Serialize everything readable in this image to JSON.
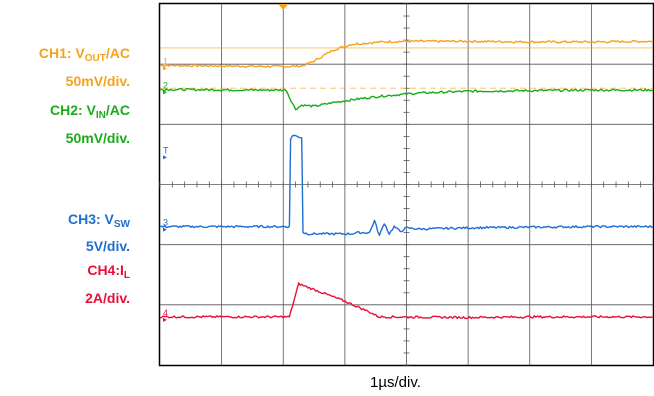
{
  "labels": {
    "ch1": {
      "prefix": "CH1: V",
      "sub": "OUT",
      "suffix": "/AC",
      "scale": "50mV/div.",
      "color": "#f7a21b"
    },
    "ch2": {
      "prefix": "CH2: V",
      "sub": "IN",
      "suffix": "/AC",
      "scale": "50mV/div.",
      "color": "#1aab1a"
    },
    "ch3": {
      "prefix": "CH3: V",
      "sub": "SW",
      "suffix": "",
      "scale": "5V/div.",
      "color": "#1f6fd1"
    },
    "ch4": {
      "prefix": "CH4:I",
      "sub": "L",
      "suffix": "",
      "scale": "2A/div.",
      "color": "#e8103a"
    }
  },
  "chart_data": {
    "type": "line",
    "xlabel": "1µs/div.",
    "divisions": {
      "x": 8,
      "y": 6
    },
    "xlim": [
      0,
      8
    ],
    "ylim": [
      0,
      6
    ],
    "channel_markers": [
      "1",
      "2",
      "T",
      "3",
      "4"
    ],
    "series": [
      {
        "name": "CH1: VOUT/AC",
        "color": "#f7a21b",
        "points": [
          [
            0,
            4.98
          ],
          [
            2,
            4.96
          ],
          [
            2.3,
            4.97
          ],
          [
            2.5,
            5.05
          ],
          [
            2.8,
            5.23
          ],
          [
            3.1,
            5.33
          ],
          [
            3.6,
            5.37
          ],
          [
            4,
            5.38
          ],
          [
            5,
            5.38
          ],
          [
            6,
            5.37
          ],
          [
            7,
            5.37
          ],
          [
            8,
            5.38
          ]
        ]
      },
      {
        "name": "CH2: VIN/AC",
        "color": "#1aab1a",
        "points": [
          [
            0,
            4.58
          ],
          [
            1.5,
            4.57
          ],
          [
            2.05,
            4.57
          ],
          [
            2.1,
            4.45
          ],
          [
            2.2,
            4.25
          ],
          [
            2.3,
            4.32
          ],
          [
            2.5,
            4.3
          ],
          [
            2.8,
            4.36
          ],
          [
            3.2,
            4.42
          ],
          [
            3.6,
            4.47
          ],
          [
            4.2,
            4.52
          ],
          [
            5,
            4.55
          ],
          [
            6,
            4.56
          ],
          [
            7,
            4.57
          ],
          [
            8,
            4.57
          ]
        ]
      },
      {
        "name": "CH3: VSW",
        "color": "#1f6fd1",
        "points": [
          [
            0,
            2.3
          ],
          [
            2.1,
            2.3
          ],
          [
            2.12,
            3.75
          ],
          [
            2.15,
            3.82
          ],
          [
            2.3,
            3.78
          ],
          [
            2.32,
            2.2
          ],
          [
            2.4,
            2.18
          ],
          [
            3.1,
            2.18
          ],
          [
            3.2,
            2.2
          ],
          [
            3.4,
            2.2
          ],
          [
            3.48,
            2.4
          ],
          [
            3.56,
            2.15
          ],
          [
            3.64,
            2.36
          ],
          [
            3.72,
            2.18
          ],
          [
            3.8,
            2.3
          ],
          [
            3.9,
            2.22
          ],
          [
            4.0,
            2.28
          ],
          [
            4.2,
            2.26
          ],
          [
            5,
            2.28
          ],
          [
            6,
            2.29
          ],
          [
            7,
            2.3
          ],
          [
            8,
            2.3
          ]
        ]
      },
      {
        "name": "CH4: IL",
        "color": "#e8103a",
        "points": [
          [
            0,
            0.8
          ],
          [
            2.1,
            0.8
          ],
          [
            2.25,
            1.35
          ],
          [
            3,
            1.06
          ],
          [
            3.4,
            0.88
          ],
          [
            3.55,
            0.8
          ],
          [
            5,
            0.79
          ],
          [
            6,
            0.8
          ],
          [
            7,
            0.8
          ],
          [
            8,
            0.8
          ]
        ]
      }
    ],
    "cursors": [
      {
        "type": "horizontal",
        "y": 5.27,
        "color": "#f7a21b"
      },
      {
        "type": "horizontal",
        "y": 4.6,
        "color": "#f7a21b"
      }
    ],
    "trigger_position": 2.0
  }
}
